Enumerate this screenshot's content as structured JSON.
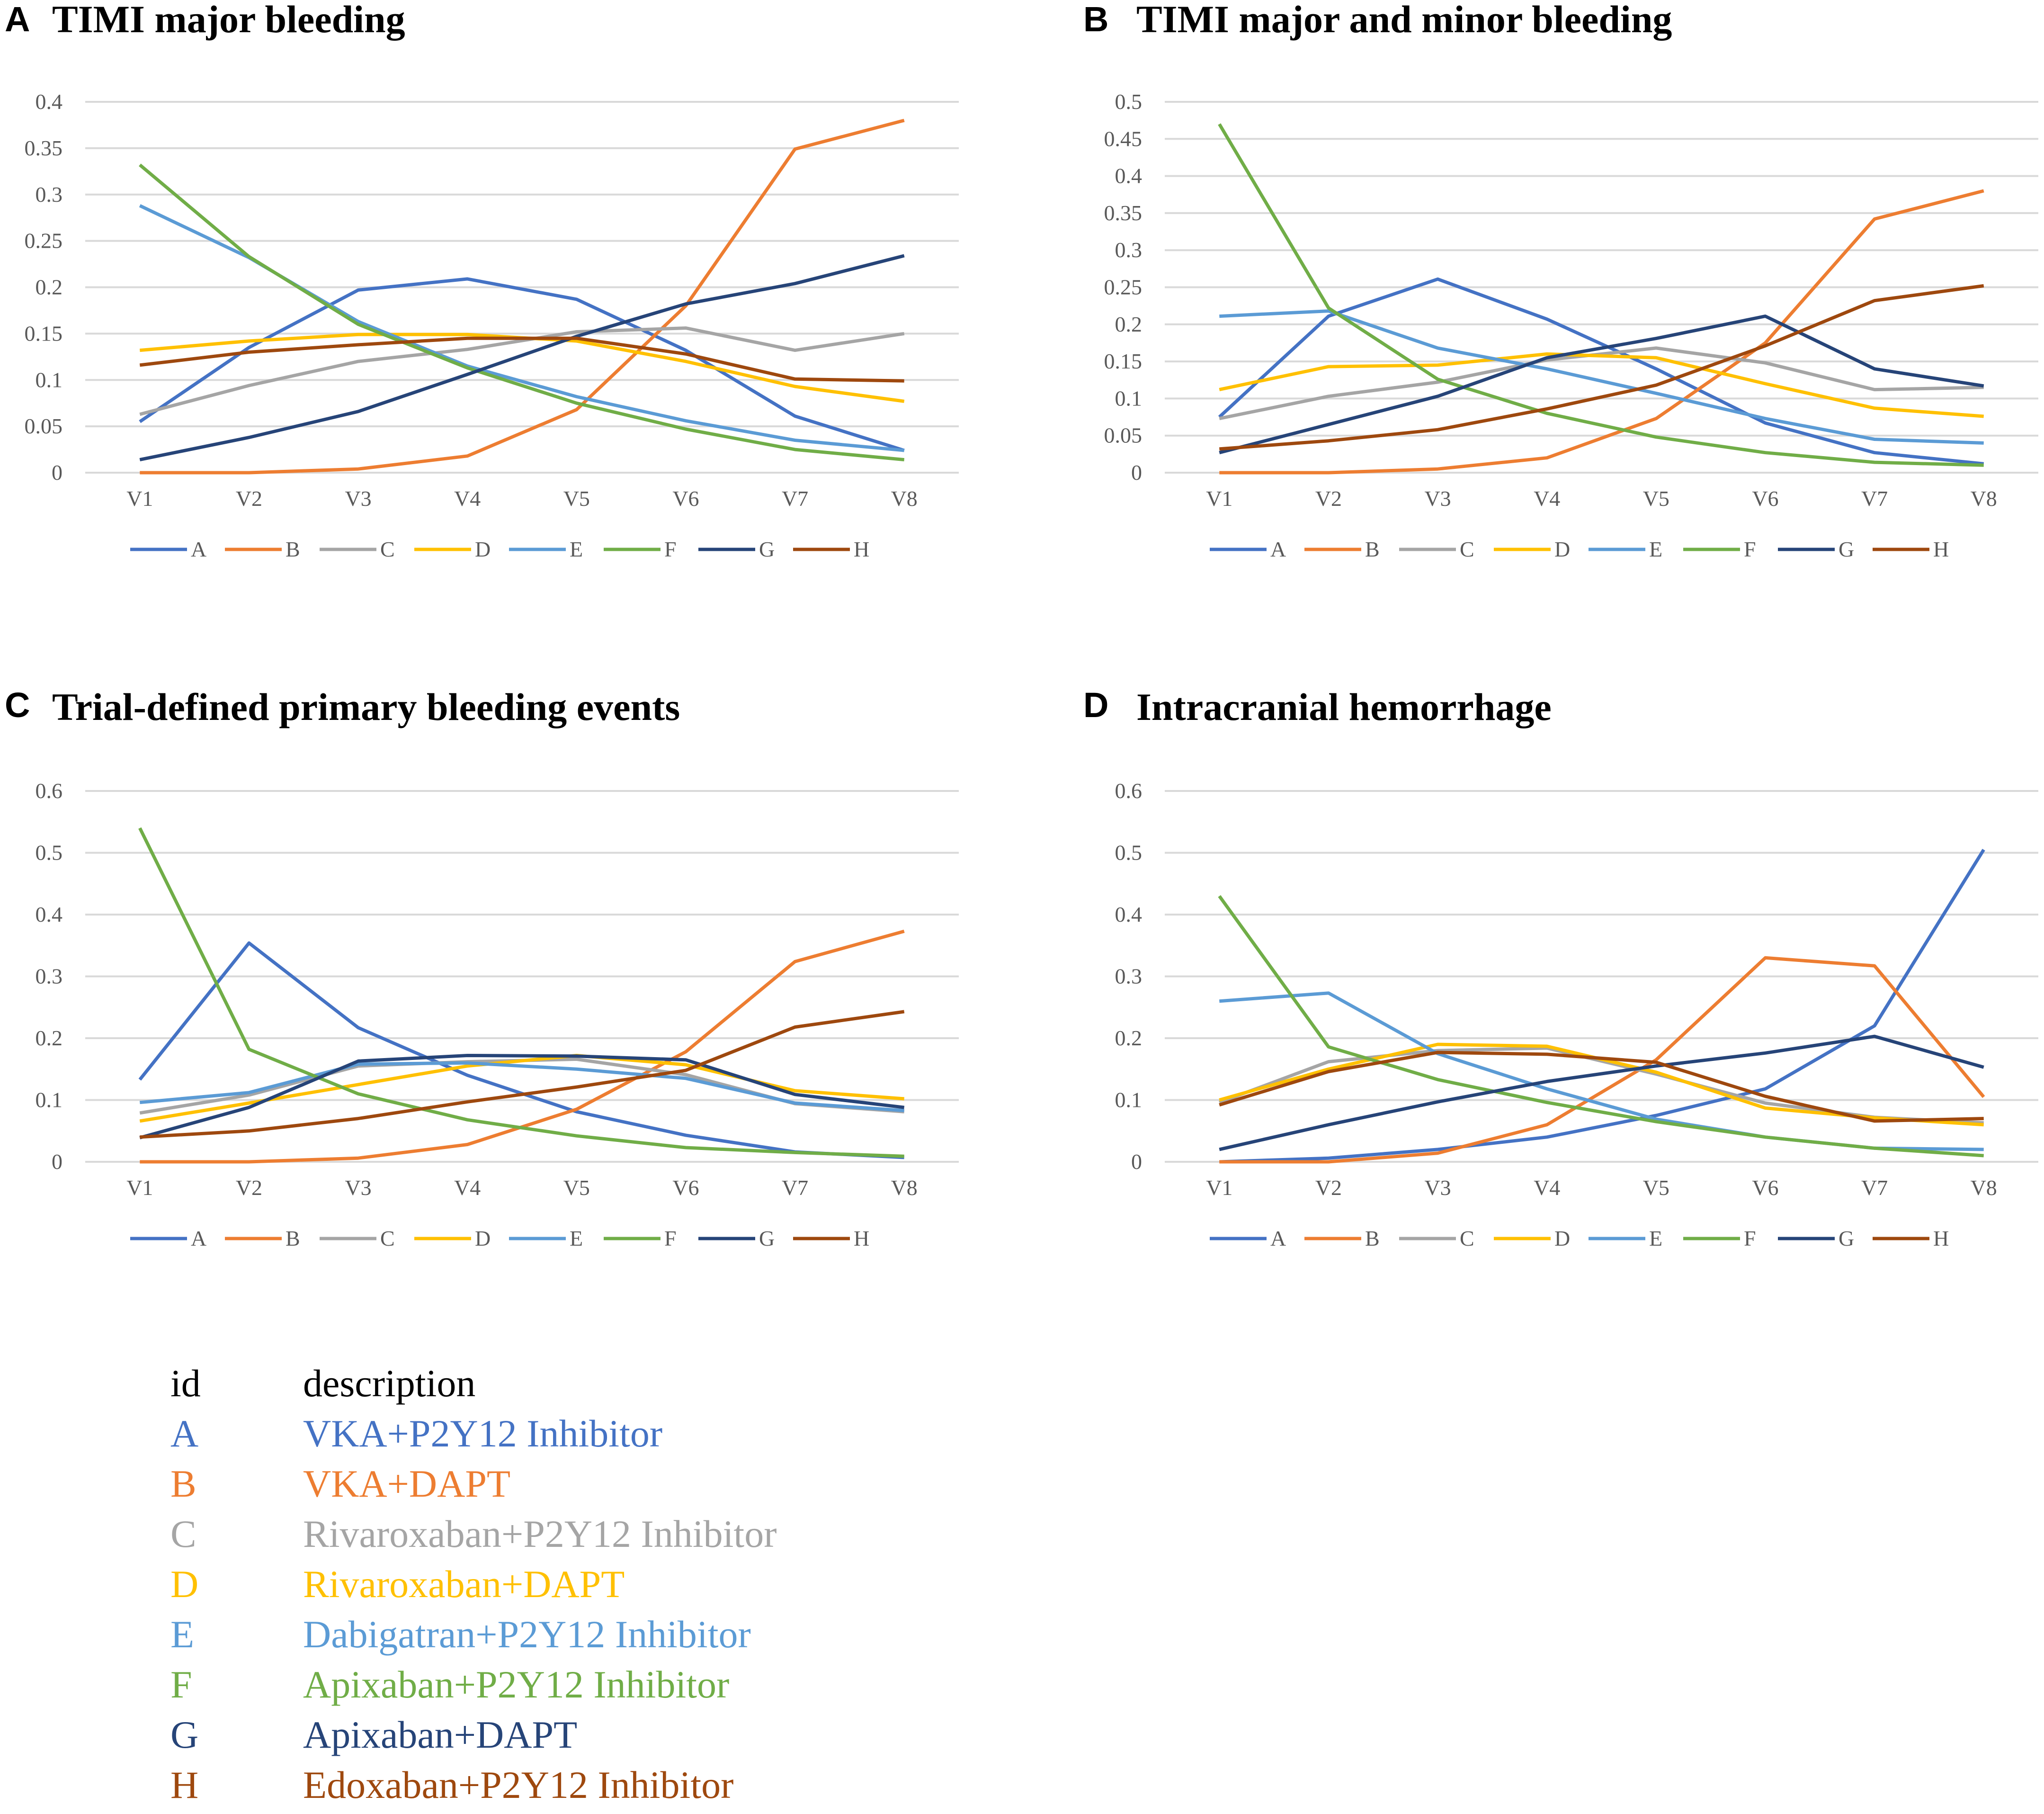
{
  "categories": [
    "V1",
    "V2",
    "V3",
    "V4",
    "V5",
    "V6",
    "V7",
    "V8"
  ],
  "series_meta": [
    {
      "id": "A",
      "color": "#4472C4"
    },
    {
      "id": "B",
      "color": "#ED7D31"
    },
    {
      "id": "C",
      "color": "#A5A5A5"
    },
    {
      "id": "D",
      "color": "#FFC000"
    },
    {
      "id": "E",
      "color": "#5B9BD5"
    },
    {
      "id": "F",
      "color": "#70AD47"
    },
    {
      "id": "G",
      "color": "#264478"
    },
    {
      "id": "H",
      "color": "#9E480E"
    }
  ],
  "legend_table": {
    "header_id": "id",
    "header_description": "description",
    "rows": [
      {
        "id": "A",
        "description": "VKA+P2Y12 Inhibitor",
        "color": "#4472C4"
      },
      {
        "id": "B",
        "description": "VKA+DAPT",
        "color": "#ED7D31"
      },
      {
        "id": "C",
        "description": "Rivaroxaban+P2Y12 Inhibitor",
        "color": "#A5A5A5"
      },
      {
        "id": "D",
        "description": "Rivaroxaban+DAPT",
        "color": "#FFC000"
      },
      {
        "id": "E",
        "description": "Dabigatran+P2Y12 Inhibitor",
        "color": "#5B9BD5"
      },
      {
        "id": "F",
        "description": "Apixaban+P2Y12 Inhibitor",
        "color": "#70AD47"
      },
      {
        "id": "G",
        "description": "Apixaban+DAPT",
        "color": "#264478"
      },
      {
        "id": "H",
        "description": "Edoxaban+P2Y12 Inhibitor",
        "color": "#9E480E"
      }
    ]
  },
  "chart_data": [
    {
      "panel": "A",
      "title": "TIMI major bleeding",
      "type": "line",
      "ylim": [
        0,
        0.4
      ],
      "yticks": [
        "0",
        "0.05",
        "0.1",
        "0.15",
        "0.2",
        "0.25",
        "0.3",
        "0.35",
        "0.4"
      ],
      "series": [
        {
          "name": "A",
          "values": [
            0.055,
            0.135,
            0.197,
            0.209,
            0.187,
            0.132,
            0.061,
            0.024
          ]
        },
        {
          "name": "B",
          "values": [
            0.0,
            0.0,
            0.004,
            0.018,
            0.068,
            0.18,
            0.349,
            0.38
          ]
        },
        {
          "name": "C",
          "values": [
            0.063,
            0.094,
            0.12,
            0.133,
            0.152,
            0.156,
            0.132,
            0.15
          ]
        },
        {
          "name": "D",
          "values": [
            0.132,
            0.142,
            0.149,
            0.149,
            0.142,
            0.12,
            0.093,
            0.077
          ]
        },
        {
          "name": "E",
          "values": [
            0.288,
            0.232,
            0.163,
            0.115,
            0.082,
            0.056,
            0.035,
            0.024
          ]
        },
        {
          "name": "F",
          "values": [
            0.332,
            0.233,
            0.16,
            0.113,
            0.075,
            0.047,
            0.025,
            0.014
          ]
        },
        {
          "name": "G",
          "values": [
            0.014,
            0.038,
            0.066,
            0.106,
            0.147,
            0.182,
            0.204,
            0.234
          ]
        },
        {
          "name": "H",
          "values": [
            0.116,
            0.13,
            0.138,
            0.145,
            0.145,
            0.128,
            0.101,
            0.099
          ]
        }
      ]
    },
    {
      "panel": "B",
      "title": "TIMI major and minor bleeding",
      "type": "line",
      "ylim": [
        0,
        0.5
      ],
      "yticks": [
        "0",
        "0.05",
        "0.1",
        "0.15",
        "0.2",
        "0.25",
        "0.3",
        "0.35",
        "0.4",
        "0.45",
        "0.5"
      ],
      "series": [
        {
          "name": "A",
          "values": [
            0.075,
            0.211,
            0.261,
            0.207,
            0.14,
            0.067,
            0.027,
            0.012
          ]
        },
        {
          "name": "B",
          "values": [
            0.0,
            0.0,
            0.005,
            0.02,
            0.073,
            0.175,
            0.342,
            0.38
          ]
        },
        {
          "name": "C",
          "values": [
            0.073,
            0.103,
            0.122,
            0.152,
            0.168,
            0.148,
            0.112,
            0.115
          ]
        },
        {
          "name": "D",
          "values": [
            0.112,
            0.143,
            0.145,
            0.16,
            0.155,
            0.12,
            0.087,
            0.076
          ]
        },
        {
          "name": "E",
          "values": [
            0.211,
            0.218,
            0.168,
            0.14,
            0.107,
            0.073,
            0.045,
            0.04
          ]
        },
        {
          "name": "F",
          "values": [
            0.47,
            0.222,
            0.126,
            0.08,
            0.048,
            0.027,
            0.014,
            0.01
          ]
        },
        {
          "name": "G",
          "values": [
            0.027,
            0.065,
            0.103,
            0.155,
            0.181,
            0.211,
            0.14,
            0.117
          ]
        },
        {
          "name": "H",
          "values": [
            0.032,
            0.043,
            0.058,
            0.086,
            0.118,
            0.171,
            0.232,
            0.252
          ]
        }
      ]
    },
    {
      "panel": "C",
      "title": "Trial-defined primary bleeding events",
      "type": "line",
      "ylim": [
        0,
        0.6
      ],
      "yticks": [
        "0",
        "0.1",
        "0.2",
        "0.3",
        "0.4",
        "0.5",
        "0.6"
      ],
      "series": [
        {
          "name": "A",
          "values": [
            0.133,
            0.354,
            0.217,
            0.14,
            0.081,
            0.043,
            0.016,
            0.007
          ]
        },
        {
          "name": "B",
          "values": [
            0.0,
            0.0,
            0.006,
            0.028,
            0.085,
            0.178,
            0.324,
            0.373
          ]
        },
        {
          "name": "C",
          "values": [
            0.079,
            0.108,
            0.155,
            0.162,
            0.166,
            0.141,
            0.094,
            0.081
          ]
        },
        {
          "name": "D",
          "values": [
            0.066,
            0.095,
            0.125,
            0.155,
            0.172,
            0.157,
            0.115,
            0.102
          ]
        },
        {
          "name": "E",
          "values": [
            0.096,
            0.112,
            0.158,
            0.16,
            0.15,
            0.135,
            0.095,
            0.083
          ]
        },
        {
          "name": "F",
          "values": [
            0.54,
            0.182,
            0.11,
            0.068,
            0.042,
            0.023,
            0.015,
            0.009
          ]
        },
        {
          "name": "G",
          "values": [
            0.039,
            0.088,
            0.163,
            0.172,
            0.171,
            0.165,
            0.109,
            0.088
          ]
        },
        {
          "name": "H",
          "values": [
            0.04,
            0.05,
            0.07,
            0.097,
            0.121,
            0.148,
            0.218,
            0.243
          ]
        }
      ]
    },
    {
      "panel": "D",
      "title": "Intracranial hemorrhage",
      "type": "line",
      "ylim": [
        0,
        0.6
      ],
      "yticks": [
        "0",
        "0.1",
        "0.2",
        "0.3",
        "0.4",
        "0.5",
        "0.6"
      ],
      "series": [
        {
          "name": "A",
          "values": [
            0.0,
            0.006,
            0.02,
            0.04,
            0.075,
            0.118,
            0.22,
            0.505
          ]
        },
        {
          "name": "B",
          "values": [
            0.0,
            0.0,
            0.014,
            0.06,
            0.165,
            0.33,
            0.317,
            0.105
          ]
        },
        {
          "name": "C",
          "values": [
            0.096,
            0.162,
            0.18,
            0.184,
            0.142,
            0.095,
            0.072,
            0.063
          ]
        },
        {
          "name": "D",
          "values": [
            0.1,
            0.15,
            0.19,
            0.187,
            0.145,
            0.087,
            0.071,
            0.06
          ]
        },
        {
          "name": "E",
          "values": [
            0.26,
            0.273,
            0.175,
            0.118,
            0.069,
            0.04,
            0.022,
            0.02
          ]
        },
        {
          "name": "F",
          "values": [
            0.43,
            0.186,
            0.133,
            0.096,
            0.065,
            0.04,
            0.022,
            0.01
          ]
        },
        {
          "name": "G",
          "values": [
            0.02,
            0.06,
            0.097,
            0.13,
            0.155,
            0.176,
            0.203,
            0.153
          ]
        },
        {
          "name": "H",
          "values": [
            0.092,
            0.146,
            0.177,
            0.174,
            0.161,
            0.106,
            0.066,
            0.07
          ]
        }
      ]
    }
  ]
}
